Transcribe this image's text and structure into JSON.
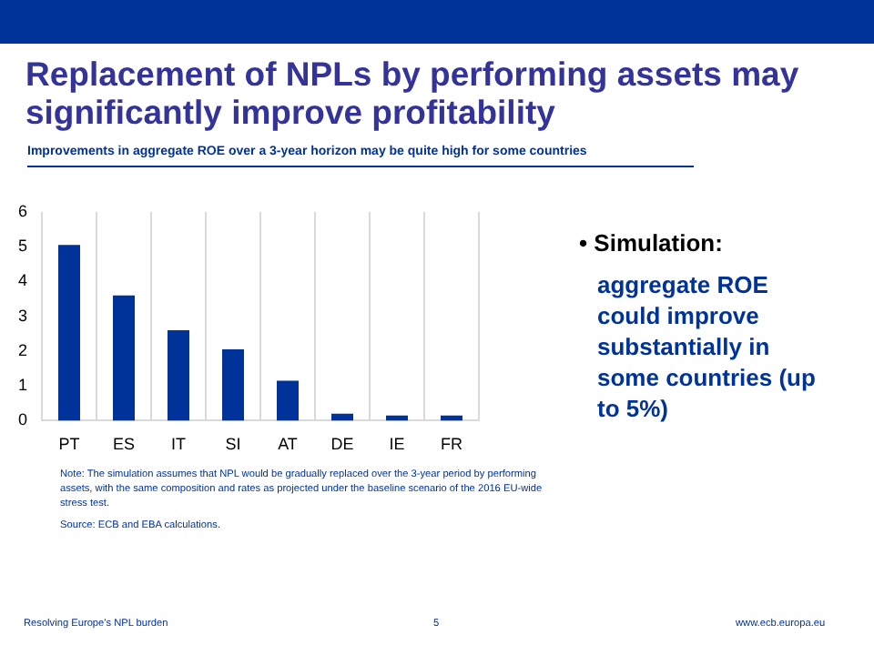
{
  "chart_data": {
    "type": "bar",
    "title": "Replacement of NPLs by performing assets may significantly improve profitability",
    "subtitle": "Improvements in aggregate  ROE over a 3-year  horizon may  be quite high for some countries",
    "categories": [
      "PT",
      "ES",
      "IT",
      "SI",
      "AT",
      "DE",
      "IE",
      "FR"
    ],
    "values": [
      5.05,
      3.6,
      2.6,
      2.05,
      1.15,
      0.2,
      0.15,
      0.15
    ],
    "color": "#003399",
    "ylim": [
      0,
      6
    ],
    "yticks": [
      0,
      1,
      2,
      3,
      4,
      5,
      6
    ],
    "grid": "x",
    "annotations": [
      "• Simulation:",
      "aggregate ROE could improve substantially in some countries (up to 5%)",
      "Note: The simulation assumes that NPL would be gradually replaced over the 3-year period by performing assets, with the same composition and rates as projected under the baseline scenario of the 2016 EU-wide stress test.",
      "Source: ECB and EBA calculations.",
      "Resolving  Europe's  NPL  burden",
      "5",
      "www.ecb.europa.eu"
    ]
  }
}
